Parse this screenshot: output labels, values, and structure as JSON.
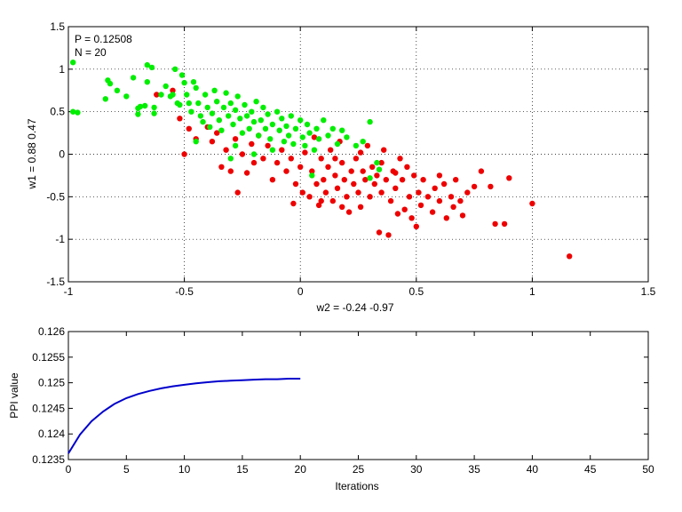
{
  "chart_data": [
    {
      "type": "scatter",
      "annotations": [
        "P = 0.12508",
        "N = 20"
      ],
      "xlabel": "w2 = -0.24  -0.97",
      "ylabel": "w1 = 0.88  0.47",
      "xlim": [
        -1,
        1.5
      ],
      "ylim": [
        -1.5,
        1.5
      ],
      "xticks": [
        "-1",
        "-0.5",
        "0",
        "0.5",
        "1",
        "1.5"
      ],
      "yticks": [
        "-1.5",
        "-1",
        "-0.5",
        "0",
        "0.5",
        "1",
        "1.5"
      ],
      "grid": true,
      "colors": {
        "green": "#00ee00",
        "red": "#ee0000"
      },
      "series": [
        {
          "color": "#00ee00",
          "points": [
            [
              -0.98,
              1.08
            ],
            [
              -0.98,
              0.5
            ],
            [
              -0.96,
              0.49
            ],
            [
              -0.84,
              0.65
            ],
            [
              -0.83,
              0.87
            ],
            [
              -0.82,
              0.83
            ],
            [
              -0.79,
              0.75
            ],
            [
              -0.75,
              0.68
            ],
            [
              -0.72,
              0.9
            ],
            [
              -0.7,
              0.54
            ],
            [
              -0.7,
              0.47
            ],
            [
              -0.69,
              0.56
            ],
            [
              -0.67,
              0.57
            ],
            [
              -0.66,
              0.85
            ],
            [
              -0.66,
              1.05
            ],
            [
              -0.64,
              1.02
            ],
            [
              -0.63,
              0.55
            ],
            [
              -0.63,
              0.48
            ],
            [
              -0.6,
              0.7
            ],
            [
              -0.58,
              0.8
            ],
            [
              -0.56,
              0.68
            ],
            [
              -0.54,
              1.0
            ],
            [
              -0.53,
              0.6
            ],
            [
              -0.52,
              0.58
            ],
            [
              -0.51,
              0.93
            ],
            [
              -0.5,
              0.84
            ],
            [
              -0.49,
              0.7
            ],
            [
              -0.48,
              0.6
            ],
            [
              -0.47,
              0.5
            ],
            [
              -0.46,
              0.85
            ],
            [
              -0.45,
              0.78
            ],
            [
              -0.44,
              0.6
            ],
            [
              -0.43,
              0.45
            ],
            [
              -0.42,
              0.38
            ],
            [
              -0.41,
              0.7
            ],
            [
              -0.4,
              0.55
            ],
            [
              -0.39,
              0.32
            ],
            [
              -0.38,
              0.48
            ],
            [
              -0.37,
              0.75
            ],
            [
              -0.36,
              0.62
            ],
            [
              -0.35,
              0.4
            ],
            [
              -0.34,
              0.28
            ],
            [
              -0.33,
              0.55
            ],
            [
              -0.32,
              0.72
            ],
            [
              -0.31,
              0.45
            ],
            [
              -0.3,
              0.6
            ],
            [
              -0.29,
              0.35
            ],
            [
              -0.28,
              0.52
            ],
            [
              -0.27,
              0.68
            ],
            [
              -0.26,
              0.42
            ],
            [
              -0.25,
              0.25
            ],
            [
              -0.24,
              0.58
            ],
            [
              -0.23,
              0.45
            ],
            [
              -0.22,
              0.3
            ],
            [
              -0.21,
              0.5
            ],
            [
              -0.2,
              0.38
            ],
            [
              -0.19,
              0.62
            ],
            [
              -0.18,
              0.22
            ],
            [
              -0.17,
              0.4
            ],
            [
              -0.16,
              0.55
            ],
            [
              -0.15,
              0.3
            ],
            [
              -0.14,
              0.47
            ],
            [
              -0.13,
              0.18
            ],
            [
              -0.12,
              0.35
            ],
            [
              -0.1,
              0.5
            ],
            [
              -0.09,
              0.28
            ],
            [
              -0.08,
              0.42
            ],
            [
              -0.07,
              0.15
            ],
            [
              -0.06,
              0.33
            ],
            [
              -0.05,
              0.22
            ],
            [
              -0.04,
              0.45
            ],
            [
              -0.03,
              0.12
            ],
            [
              -0.02,
              0.3
            ],
            [
              0.0,
              0.4
            ],
            [
              0.01,
              0.2
            ],
            [
              0.02,
              0.1
            ],
            [
              0.03,
              0.35
            ],
            [
              0.04,
              0.25
            ],
            [
              0.06,
              0.05
            ],
            [
              0.07,
              0.3
            ],
            [
              0.08,
              0.18
            ],
            [
              0.1,
              0.4
            ],
            [
              0.12,
              0.22
            ],
            [
              0.14,
              0.3
            ],
            [
              0.16,
              0.12
            ],
            [
              0.18,
              0.28
            ],
            [
              0.2,
              0.2
            ],
            [
              0.24,
              0.1
            ],
            [
              0.27,
              0.15
            ],
            [
              0.3,
              0.38
            ],
            [
              0.33,
              -0.1
            ],
            [
              0.34,
              -0.18
            ],
            [
              -0.2,
              0.0
            ],
            [
              -0.3,
              -0.05
            ],
            [
              0.05,
              -0.25
            ],
            [
              0.3,
              -0.28
            ],
            [
              -0.45,
              0.15
            ],
            [
              -0.55,
              0.7
            ],
            [
              -0.28,
              0.1
            ],
            [
              -0.12,
              0.05
            ]
          ]
        },
        {
          "color": "#ee0000",
          "points": [
            [
              -0.62,
              0.7
            ],
            [
              -0.55,
              0.75
            ],
            [
              -0.52,
              0.42
            ],
            [
              -0.5,
              0.0
            ],
            [
              -0.48,
              0.3
            ],
            [
              -0.45,
              0.18
            ],
            [
              -0.4,
              0.32
            ],
            [
              -0.38,
              0.15
            ],
            [
              -0.36,
              0.25
            ],
            [
              -0.34,
              -0.15
            ],
            [
              -0.32,
              0.05
            ],
            [
              -0.3,
              -0.2
            ],
            [
              -0.28,
              0.18
            ],
            [
              -0.27,
              -0.45
            ],
            [
              -0.25,
              0.0
            ],
            [
              -0.23,
              -0.22
            ],
            [
              -0.21,
              0.12
            ],
            [
              -0.2,
              -0.1
            ],
            [
              -0.18,
              0.22
            ],
            [
              -0.16,
              -0.05
            ],
            [
              -0.14,
              0.1
            ],
            [
              -0.12,
              -0.3
            ],
            [
              -0.1,
              -0.1
            ],
            [
              -0.08,
              0.05
            ],
            [
              -0.06,
              -0.2
            ],
            [
              -0.04,
              -0.05
            ],
            [
              -0.03,
              -0.58
            ],
            [
              -0.02,
              -0.35
            ],
            [
              0.0,
              -0.15
            ],
            [
              0.01,
              -0.45
            ],
            [
              0.02,
              0.02
            ],
            [
              0.04,
              -0.5
            ],
            [
              0.05,
              -0.2
            ],
            [
              0.06,
              0.2
            ],
            [
              0.07,
              -0.35
            ],
            [
              0.08,
              -0.6
            ],
            [
              0.09,
              -0.05
            ],
            [
              0.1,
              -0.3
            ],
            [
              0.11,
              -0.45
            ],
            [
              0.12,
              -0.15
            ],
            [
              0.13,
              0.05
            ],
            [
              0.14,
              -0.55
            ],
            [
              0.15,
              -0.25
            ],
            [
              0.16,
              -0.4
            ],
            [
              0.17,
              0.15
            ],
            [
              0.18,
              -0.1
            ],
            [
              0.19,
              -0.3
            ],
            [
              0.2,
              -0.5
            ],
            [
              0.21,
              -0.68
            ],
            [
              0.22,
              -0.2
            ],
            [
              0.23,
              -0.35
            ],
            [
              0.24,
              -0.05
            ],
            [
              0.25,
              -0.45
            ],
            [
              0.26,
              -0.62
            ],
            [
              0.27,
              -0.2
            ],
            [
              0.28,
              -0.3
            ],
            [
              0.29,
              0.1
            ],
            [
              0.3,
              -0.5
            ],
            [
              0.31,
              -0.15
            ],
            [
              0.32,
              -0.35
            ],
            [
              0.33,
              -0.25
            ],
            [
              0.34,
              -0.92
            ],
            [
              0.35,
              -0.45
            ],
            [
              0.36,
              0.05
            ],
            [
              0.37,
              -0.3
            ],
            [
              0.38,
              -0.95
            ],
            [
              0.39,
              -0.55
            ],
            [
              0.4,
              -0.2
            ],
            [
              0.41,
              -0.4
            ],
            [
              0.42,
              -0.7
            ],
            [
              0.43,
              -0.05
            ],
            [
              0.44,
              -0.3
            ],
            [
              0.45,
              -0.65
            ],
            [
              0.46,
              -0.15
            ],
            [
              0.47,
              -0.5
            ],
            [
              0.48,
              -0.75
            ],
            [
              0.49,
              -0.25
            ],
            [
              0.5,
              -0.85
            ],
            [
              0.51,
              -0.45
            ],
            [
              0.52,
              -0.6
            ],
            [
              0.53,
              -0.3
            ],
            [
              0.55,
              -0.5
            ],
            [
              0.57,
              -0.68
            ],
            [
              0.58,
              -0.4
            ],
            [
              0.6,
              -0.55
            ],
            [
              0.62,
              -0.35
            ],
            [
              0.63,
              -0.75
            ],
            [
              0.65,
              -0.5
            ],
            [
              0.67,
              -0.3
            ],
            [
              0.69,
              -0.55
            ],
            [
              0.7,
              -0.72
            ],
            [
              0.72,
              -0.45
            ],
            [
              0.75,
              -0.38
            ],
            [
              0.78,
              -0.2
            ],
            [
              0.82,
              -0.38
            ],
            [
              0.84,
              -0.82
            ],
            [
              0.88,
              -0.82
            ],
            [
              0.9,
              -0.28
            ],
            [
              1.0,
              -0.58
            ],
            [
              1.16,
              -1.2
            ],
            [
              0.35,
              -0.1
            ],
            [
              0.41,
              -0.22
            ],
            [
              0.26,
              0.02
            ],
            [
              0.15,
              -0.05
            ],
            [
              0.18,
              -0.62
            ],
            [
              0.09,
              -0.55
            ],
            [
              0.6,
              -0.25
            ],
            [
              0.66,
              -0.62
            ]
          ]
        }
      ]
    },
    {
      "type": "line",
      "xlabel": "Iterations",
      "ylabel": "PPI value",
      "xlim": [
        0,
        50
      ],
      "ylim": [
        0.1235,
        0.126
      ],
      "xticks": [
        "0",
        "5",
        "10",
        "15",
        "20",
        "25",
        "30",
        "35",
        "40",
        "45",
        "50"
      ],
      "yticks": [
        "0.1235",
        "0.124",
        "0.1245",
        "0.125",
        "0.1255",
        "0.126"
      ],
      "grid": false,
      "series": [
        {
          "color": "#0000cc",
          "x": [
            0,
            1,
            2,
            3,
            4,
            5,
            6,
            7,
            8,
            9,
            10,
            11,
            12,
            13,
            14,
            15,
            16,
            17,
            18,
            19,
            20
          ],
          "values": [
            0.12362,
            0.12399,
            0.12425,
            0.12444,
            0.12459,
            0.1247,
            0.12478,
            0.12484,
            0.12489,
            0.12493,
            0.12496,
            0.12499,
            0.12501,
            0.12503,
            0.12504,
            0.12505,
            0.12506,
            0.12507,
            0.12507,
            0.12508,
            0.12508
          ]
        }
      ]
    }
  ]
}
